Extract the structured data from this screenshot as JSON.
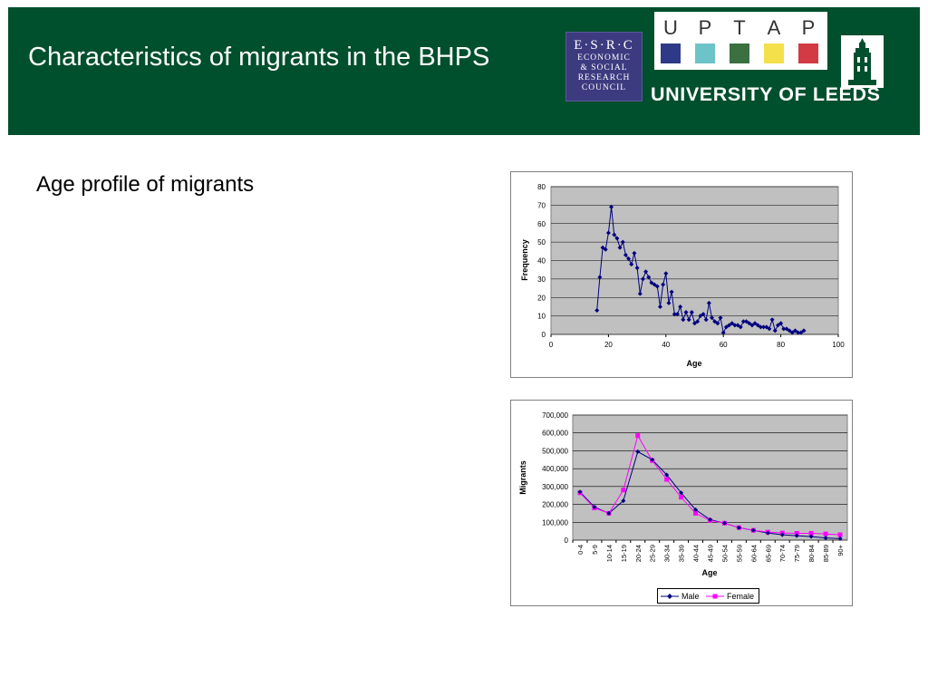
{
  "header": {
    "title": "Characteristics of migrants in the BHPS",
    "esrc": {
      "initials": "E·S·R·C",
      "lines": [
        "ECONOMIC",
        "& SOCIAL",
        "RESEARCH",
        "COUNCIL"
      ]
    },
    "uptap": {
      "letters": [
        "U",
        "P",
        "T",
        "A",
        "P"
      ],
      "colors": [
        "#2e3a87",
        "#6cc4c8",
        "#3b7040",
        "#f4e04a",
        "#d23a44"
      ]
    },
    "university": "UNIVERSITY OF LEEDS"
  },
  "main": {
    "subtitle": "Age profile of migrants"
  },
  "colors": {
    "header_bg": "#004f2d",
    "plot_bg": "#c0c0c0",
    "male_series": "#000080",
    "female_series": "#ff00ff"
  },
  "chart_data": [
    {
      "type": "scatter",
      "title": "",
      "xlabel": "Age",
      "ylabel": "Frequency",
      "xlim": [
        0,
        100
      ],
      "ylim": [
        0,
        80
      ],
      "x_ticks": [
        "0",
        "20",
        "40",
        "60",
        "80",
        "100"
      ],
      "y_ticks": [
        "0",
        "10",
        "20",
        "30",
        "40",
        "50",
        "60",
        "70",
        "80"
      ],
      "grid": true,
      "legend": false,
      "series": [
        {
          "x": [
            16,
            17,
            18,
            19,
            20,
            21,
            22,
            23,
            24,
            25,
            26,
            27,
            28,
            29,
            30,
            31,
            32,
            33,
            34,
            35,
            36,
            37,
            38,
            39,
            40,
            41,
            42,
            43,
            44,
            45,
            46,
            47,
            48,
            49,
            50,
            51,
            52,
            53,
            54,
            55,
            56,
            57,
            58,
            59,
            60,
            61,
            62,
            63,
            64,
            65,
            66,
            67,
            68,
            69,
            70,
            71,
            72,
            73,
            74,
            75,
            76,
            77,
            78,
            79,
            80,
            81,
            82,
            83,
            84,
            85,
            86,
            87,
            88
          ],
          "y": [
            13,
            31,
            47,
            46,
            55,
            69,
            54,
            52,
            47,
            50,
            43,
            41,
            38,
            44,
            36,
            22,
            30,
            34,
            31,
            28,
            27,
            26,
            15,
            27,
            33,
            17,
            23,
            11,
            11,
            15,
            8,
            12,
            8,
            12,
            6,
            7,
            10,
            11,
            8,
            17,
            9,
            7,
            6,
            9,
            1,
            4,
            5,
            6,
            5,
            5,
            4,
            7,
            7,
            6,
            5,
            6,
            5,
            4,
            4,
            4,
            3,
            8,
            2,
            5,
            6,
            3,
            3,
            2,
            1,
            2,
            1,
            1,
            2
          ]
        }
      ]
    },
    {
      "type": "line",
      "title": "",
      "xlabel": "Age",
      "ylabel": "Migrants",
      "ylim": [
        0,
        700000
      ],
      "y_ticks": [
        "0",
        "100,000",
        "200,000",
        "300,000",
        "400,000",
        "500,000",
        "600,000",
        "700,000"
      ],
      "categories": [
        "0-4",
        "5-9",
        "10-14",
        "15-19",
        "20-24",
        "25-29",
        "30-34",
        "35-39",
        "40-44",
        "45-49",
        "50-54",
        "55-59",
        "60-64",
        "65-69",
        "70-74",
        "75-79",
        "80-84",
        "85-89",
        "90+"
      ],
      "grid": true,
      "legend": "bottom",
      "series": [
        {
          "name": "Male",
          "values": [
            270000,
            185000,
            150000,
            220000,
            495000,
            450000,
            365000,
            265000,
            170000,
            115000,
            95000,
            70000,
            55000,
            40000,
            30000,
            25000,
            20000,
            12000,
            8000
          ]
        },
        {
          "name": "Female",
          "values": [
            265000,
            180000,
            150000,
            280000,
            585000,
            445000,
            340000,
            240000,
            150000,
            110000,
            95000,
            70000,
            55000,
            45000,
            40000,
            38000,
            38000,
            35000,
            30000
          ]
        }
      ]
    }
  ]
}
